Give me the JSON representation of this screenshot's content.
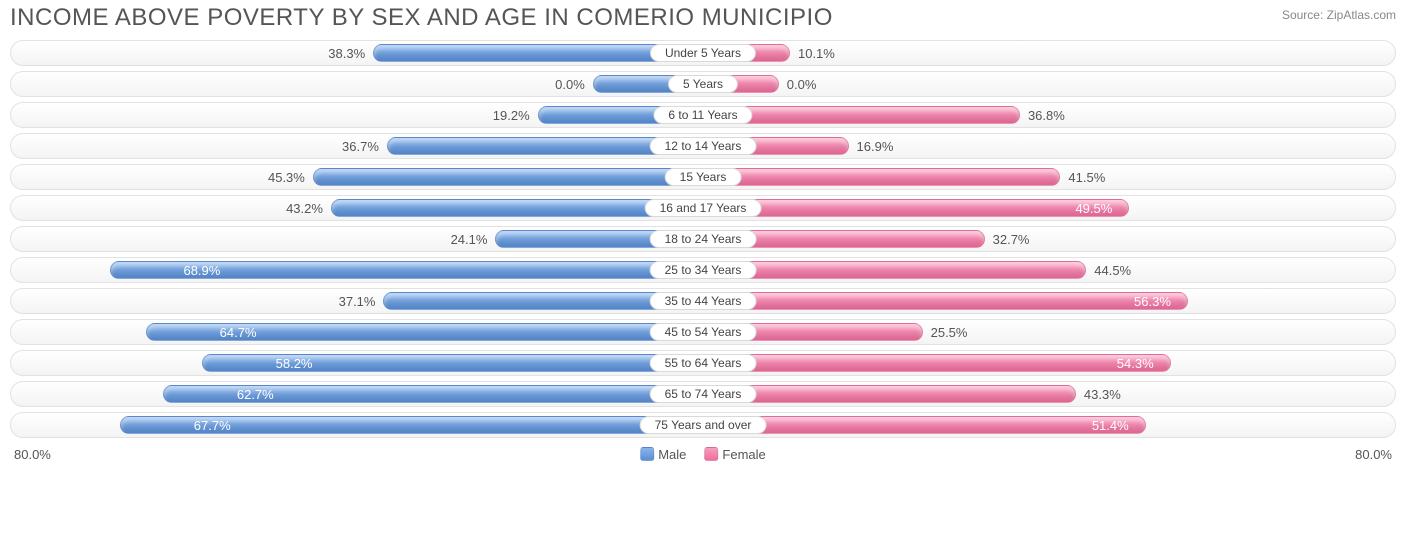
{
  "header": {
    "title": "INCOME ABOVE POVERTY BY SEX AND AGE IN COMERIO MUNICIPIO",
    "source": "Source: ZipAtlas.com"
  },
  "chart": {
    "type": "diverging-bar",
    "axis_max": 80.0,
    "axis_label_left": "80.0%",
    "axis_label_right": "80.0%",
    "male_color_top": "#8ab4e8",
    "male_color_bottom": "#5a8fd6",
    "female_color_top": "#f59ebd",
    "female_color_bottom": "#ef6f9f",
    "track_border": "#e2e2e2",
    "track_bg_top": "#ffffff",
    "track_bg_bottom": "#f4f4f4",
    "label_color": "#555555",
    "inside_label_color": "#ffffff",
    "title_fontsize": 24,
    "value_fontsize": 13,
    "category_fontsize": 12,
    "legend": {
      "male": "Male",
      "female": "Female"
    },
    "rows": [
      {
        "category": "Under 5 Years",
        "male": 38.3,
        "female": 10.1,
        "male_label": "38.3%",
        "female_label": "10.1%",
        "male_inside": false,
        "female_inside": false
      },
      {
        "category": "5 Years",
        "male": 0.0,
        "female": 0.0,
        "male_label": "0.0%",
        "female_label": "0.0%",
        "male_inside": false,
        "female_inside": false,
        "male_stub": 12,
        "female_stub": 10
      },
      {
        "category": "6 to 11 Years",
        "male": 19.2,
        "female": 36.8,
        "male_label": "19.2%",
        "female_label": "36.8%",
        "male_inside": false,
        "female_inside": false
      },
      {
        "category": "12 to 14 Years",
        "male": 36.7,
        "female": 16.9,
        "male_label": "36.7%",
        "female_label": "16.9%",
        "male_inside": false,
        "female_inside": false
      },
      {
        "category": "15 Years",
        "male": 45.3,
        "female": 41.5,
        "male_label": "45.3%",
        "female_label": "41.5%",
        "male_inside": false,
        "female_inside": false
      },
      {
        "category": "16 and 17 Years",
        "male": 43.2,
        "female": 49.5,
        "male_label": "43.2%",
        "female_label": "49.5%",
        "male_inside": false,
        "female_inside": true
      },
      {
        "category": "18 to 24 Years",
        "male": 24.1,
        "female": 32.7,
        "male_label": "24.1%",
        "female_label": "32.7%",
        "male_inside": false,
        "female_inside": false
      },
      {
        "category": "25 to 34 Years",
        "male": 68.9,
        "female": 44.5,
        "male_label": "68.9%",
        "female_label": "44.5%",
        "male_inside": true,
        "female_inside": false
      },
      {
        "category": "35 to 44 Years",
        "male": 37.1,
        "female": 56.3,
        "male_label": "37.1%",
        "female_label": "56.3%",
        "male_inside": false,
        "female_inside": true
      },
      {
        "category": "45 to 54 Years",
        "male": 64.7,
        "female": 25.5,
        "male_label": "64.7%",
        "female_label": "25.5%",
        "male_inside": true,
        "female_inside": false
      },
      {
        "category": "55 to 64 Years",
        "male": 58.2,
        "female": 54.3,
        "male_label": "58.2%",
        "female_label": "54.3%",
        "male_inside": true,
        "female_inside": true
      },
      {
        "category": "65 to 74 Years",
        "male": 62.7,
        "female": 43.3,
        "male_label": "62.7%",
        "female_label": "43.3%",
        "male_inside": true,
        "female_inside": false
      },
      {
        "category": "75 Years and over",
        "male": 67.7,
        "female": 51.4,
        "male_label": "67.7%",
        "female_label": "51.4%",
        "male_inside": true,
        "female_inside": true
      }
    ]
  }
}
